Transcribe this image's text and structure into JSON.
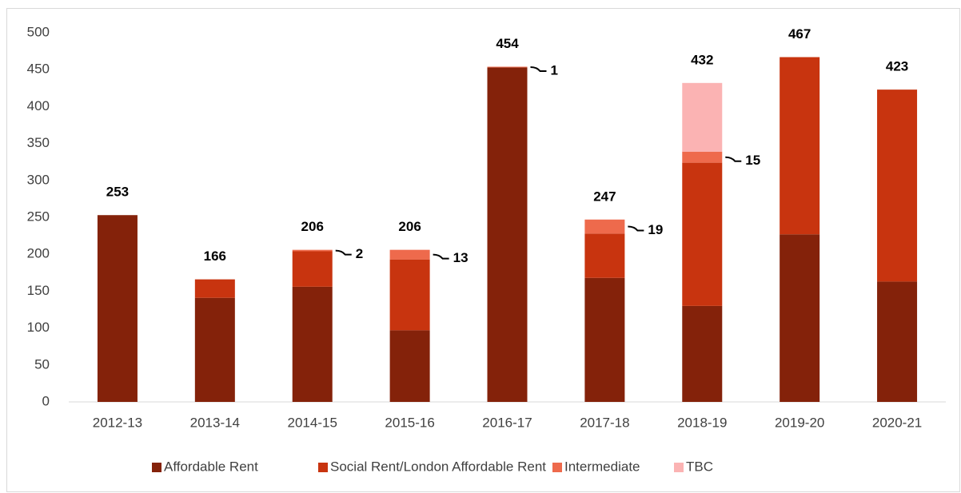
{
  "chart_data": {
    "type": "stacked-bar",
    "categories": [
      "2012-13",
      "2013-14",
      "2014-15",
      "2015-16",
      "2016-17",
      "2017-18",
      "2018-19",
      "2019-20",
      "2020-21"
    ],
    "series": [
      {
        "name": "Affordable Rent",
        "color": "#84220a",
        "values": [
          253,
          141,
          156,
          97,
          453,
          168,
          130,
          227,
          163
        ]
      },
      {
        "name": "Social Rent/London Affordable Rent",
        "color": "#c8340f",
        "values": [
          0,
          25,
          48,
          96,
          0,
          60,
          194,
          240,
          260
        ]
      },
      {
        "name": "Intermediate",
        "color": "#ee6a4c",
        "values": [
          0,
          0,
          2,
          13,
          1,
          19,
          15,
          0,
          0
        ]
      },
      {
        "name": "TBC",
        "color": "#fbb3b3",
        "values": [
          0,
          0,
          0,
          0,
          0,
          0,
          93,
          0,
          0
        ]
      }
    ],
    "totals": [
      253,
      166,
      206,
      206,
      454,
      247,
      432,
      467,
      423
    ],
    "ylim": [
      0,
      500
    ],
    "yticks": [
      0,
      50,
      100,
      150,
      200,
      250,
      300,
      350,
      400,
      450,
      500
    ],
    "legend": "bottom"
  }
}
